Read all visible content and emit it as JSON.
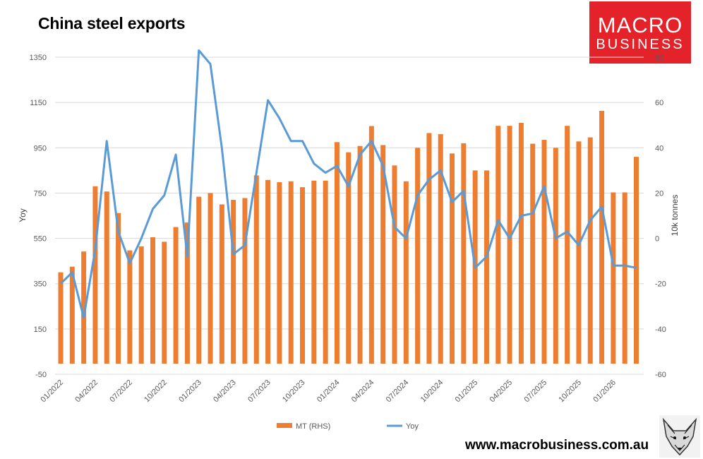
{
  "page": {
    "title": "China steel exports",
    "logo_line1": "MACRO",
    "logo_line2": "BUSINESS",
    "url": "www.macrobusiness.com.au",
    "brand_color": "#e3222a",
    "fox_icon": "fox-head-icon"
  },
  "chart_data": {
    "type": "bar+line",
    "title": "China steel exports",
    "categories": [
      "01/2022",
      "02/2022",
      "03/2022",
      "04/2022",
      "05/2022",
      "06/2022",
      "07/2022",
      "08/2022",
      "09/2022",
      "10/2022",
      "11/2022",
      "12/2022",
      "01/2023",
      "02/2023",
      "03/2023",
      "04/2023",
      "05/2023",
      "06/2023",
      "07/2023",
      "08/2023",
      "09/2023",
      "10/2023",
      "11/2023",
      "12/2023",
      "01/2024",
      "02/2024",
      "03/2024",
      "04/2024",
      "05/2024",
      "06/2024",
      "07/2024",
      "08/2024",
      "09/2024",
      "10/2024",
      "11/2024",
      "12/2024",
      "01/2025",
      "02/2025",
      "03/2025",
      "04/2025",
      "05/2025",
      "06/2025",
      "07/2025",
      "08/2025",
      "09/2025",
      "10/2025",
      "11/2025",
      "12/2025",
      "01/2026",
      "02/2026",
      "03/2026"
    ],
    "x_tick_labels": [
      "01/2022",
      "04/2022",
      "07/2022",
      "10/2022",
      "01/2023",
      "04/2023",
      "07/2023",
      "10/2023",
      "01/2024",
      "04/2024",
      "07/2024",
      "10/2024",
      "01/2025",
      "04/2025",
      "07/2025",
      "10/2025",
      "01/2026"
    ],
    "series": [
      {
        "name": "MT (RHS)",
        "type": "bar",
        "axis": "left",
        "color": "#ed7d31",
        "values": [
          400,
          425,
          492,
          780,
          757,
          662,
          497,
          515,
          555,
          535,
          600,
          620,
          734,
          750,
          700,
          720,
          728,
          828,
          808,
          798,
          802,
          776,
          805,
          805,
          975,
          930,
          958,
          1046,
          962,
          872,
          802,
          950,
          1015,
          1010,
          925,
          970,
          850,
          850,
          1047,
          1047,
          1060,
          968,
          985,
          950,
          1047,
          978,
          996,
          1113,
          753,
          753,
          910
        ]
      },
      {
        "name": "Yoy",
        "type": "line",
        "axis": "right",
        "color": "#5b9bd5",
        "values": [
          -20,
          -15,
          -35,
          -5,
          43,
          3,
          -11,
          0,
          13,
          19,
          37,
          -8,
          83,
          77,
          40,
          -7,
          -3,
          29,
          61,
          53,
          43,
          43,
          33,
          29,
          32,
          23,
          37,
          43,
          32,
          5,
          0,
          19,
          26,
          30,
          16,
          21,
          -13,
          -8,
          8,
          0,
          10,
          11,
          23,
          0,
          3,
          -3,
          8,
          14,
          -12,
          -12,
          -13
        ]
      }
    ],
    "left_axis": {
      "label": "Yoy",
      "min": -50,
      "max": 1350,
      "ticks": [
        -50,
        150,
        350,
        550,
        750,
        950,
        1150,
        1350
      ]
    },
    "right_axis": {
      "label": "10k tonnes",
      "min": -60,
      "max": 80,
      "ticks": [
        -60,
        -40,
        -20,
        0,
        20,
        40,
        60,
        80
      ]
    },
    "grid": true,
    "legend": {
      "position": "bottom",
      "entries": [
        "MT (RHS)",
        "Yoy"
      ]
    }
  }
}
